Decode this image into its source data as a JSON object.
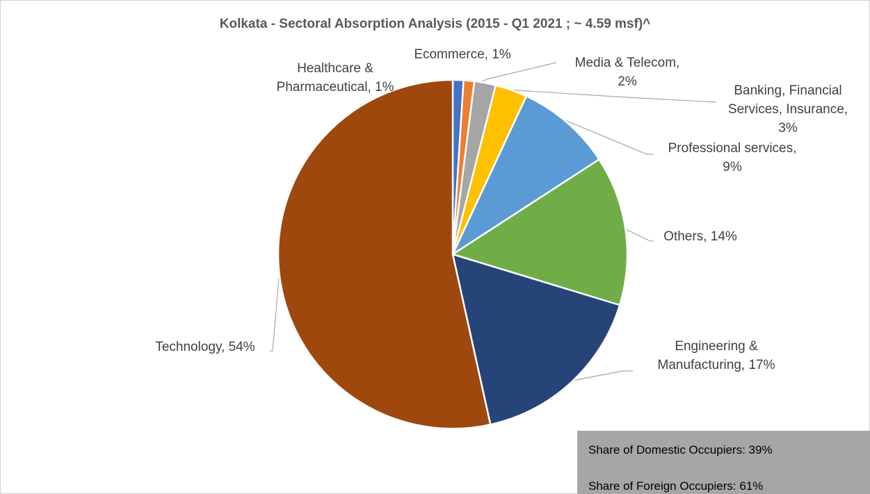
{
  "chart_data": {
    "type": "pie",
    "title": "Kolkata - Sectoral Absorption Analysis (2015 - Q1 2021 ; ~ 4.59 msf)^",
    "categories": [
      "Healthcare & Pharmaceutical, 1%",
      "Ecommerce, 1%",
      "Media & Telecom, 2%",
      "Banking, Financial Services, Insurance, 3%",
      "Professional services, 9%",
      "Others, 14%",
      "Engineering & Manufacturing, 17%",
      "Technology, 54%"
    ],
    "values": [
      1,
      1,
      2,
      3,
      9,
      14,
      17,
      54
    ],
    "colors": [
      "#4472c4",
      "#ed7d31",
      "#a5a5a5",
      "#ffc000",
      "#5b9bd5",
      "#70ad47",
      "#264478",
      "#9e480e"
    ],
    "notes": [
      "Share of Domestic Occupiers: 39%",
      "Share of Foreign Occupiers: 61%"
    ]
  }
}
